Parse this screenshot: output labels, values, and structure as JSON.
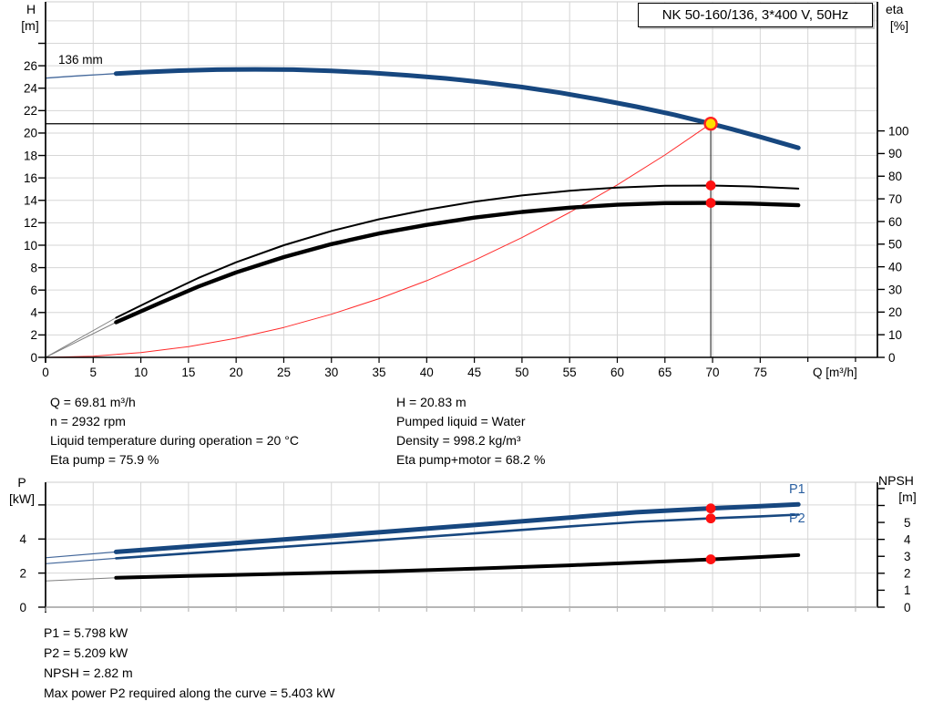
{
  "title_box": {
    "label": "NK 50-160/136, 3*400 V, 50Hz"
  },
  "colors": {
    "navy": "#17477F",
    "red": "#FF2222",
    "dot_red": "#FF1111",
    "yellow": "#FFDF00",
    "grid": "#D6D6D6",
    "axis": "#000000",
    "blue_label": "#2A5FA0",
    "leader_gray": "#808080",
    "leader_blue": "#44689B"
  },
  "top_chart": {
    "y_left_title_1": "H",
    "y_left_title_2": "[m]",
    "y_right_title_1": "eta",
    "y_right_title_2": "[%]",
    "x_title": "Q [m³/h]",
    "impeller_label": "136 mm"
  },
  "bottom_chart": {
    "y_left_title_1": "P",
    "y_left_title_2": "[kW]",
    "y_right_title_1": "NPSH",
    "y_right_title_2": "[m]",
    "p1_label": "P1",
    "p2_label": "P2"
  },
  "info_top": {
    "left": [
      "Q = 69.81 m³/h",
      "n = 2932 rpm",
      "Liquid temperature during operation = 20 °C",
      "Eta pump = 75.9 %"
    ],
    "right": [
      "H = 20.83 m",
      "Pumped liquid = Water",
      "Density = 998.2 kg/m³",
      "Eta pump+motor = 68.2 %"
    ]
  },
  "info_bottom": [
    "P1 = 5.798 kW",
    "P2 = 5.209 kW",
    "NPSH = 2.82 m",
    "Max power P2 required along the curve = 5.403 kW"
  ],
  "chart_data": [
    {
      "type": "line",
      "name": "hq-eta-chart",
      "title": "Head and efficiency vs flow, NK 50-160/136",
      "xlabel": "Q [m³/h]",
      "ylabel_left": "H [m]",
      "ylabel_right": "eta [%]",
      "xlim": [
        0,
        87.3
      ],
      "ylim_left": [
        0,
        31.7
      ],
      "ylim_right": [
        0,
        157
      ],
      "grid": {
        "x_step": 5,
        "x_max": 85,
        "y_step": 2,
        "y_max": 30
      },
      "ticks": {
        "x": [
          0,
          5,
          10,
          15,
          20,
          25,
          30,
          35,
          40,
          45,
          50,
          55,
          60,
          65,
          70,
          75
        ],
        "x_minor": [
          80,
          85
        ],
        "left": [
          0,
          2,
          4,
          6,
          8,
          10,
          12,
          14,
          16,
          18,
          20,
          22,
          24,
          26
        ],
        "left_minor": [
          28
        ],
        "right": [
          0,
          10,
          20,
          30,
          40,
          50,
          60,
          70,
          80,
          90,
          100
        ],
        "right_minor": []
      },
      "duty_point": {
        "q": 69.81,
        "h": 20.83
      },
      "guide_lines": [
        {
          "type": "h",
          "v": 20.83,
          "from_q": 0,
          "to_q": 69.81,
          "color": "#000000",
          "width": 1.3
        },
        {
          "type": "v",
          "q": 69.81,
          "from_v": 20.83,
          "to_v": 0,
          "color": "#3C3C3C",
          "width": 1.2
        }
      ],
      "series": [
        {
          "name": "system-curve",
          "axis": "left",
          "color": "#FF2A2A",
          "width": 1,
          "points": [
            [
              0,
              0
            ],
            [
              5,
              0.107
            ],
            [
              10,
              0.427
            ],
            [
              15,
              0.961
            ],
            [
              20,
              1.709
            ],
            [
              25,
              2.67
            ],
            [
              30,
              3.845
            ],
            [
              35,
              5.233
            ],
            [
              40,
              6.835
            ],
            [
              45,
              8.65
            ],
            [
              50,
              10.679
            ],
            [
              55,
              12.921
            ],
            [
              60,
              15.377
            ],
            [
              65,
              18.046
            ],
            [
              69.81,
              20.83
            ]
          ]
        },
        {
          "name": "eta-pump-plus-motor",
          "axis": "right",
          "color": "#000000",
          "width": 4.4,
          "thin_until": 7.4,
          "thin_color": "#808080",
          "thin_width": 1,
          "points": [
            [
              0,
              0
            ],
            [
              7.4,
              15.5
            ],
            [
              12,
              24
            ],
            [
              16,
              31.2
            ],
            [
              20,
              37.5
            ],
            [
              25,
              44.3
            ],
            [
              30,
              50
            ],
            [
              35,
              54.7
            ],
            [
              40,
              58.5
            ],
            [
              45,
              61.7
            ],
            [
              50,
              64.2
            ],
            [
              55,
              66.1
            ],
            [
              60,
              67.4
            ],
            [
              65,
              68.1
            ],
            [
              69.81,
              68.2
            ],
            [
              74,
              67.9
            ],
            [
              79,
              67.2
            ]
          ]
        },
        {
          "name": "eta-pump",
          "axis": "right",
          "color": "#000000",
          "width": 2,
          "thin_until": 7.4,
          "thin_color": "#808080",
          "thin_width": 1,
          "points": [
            [
              0,
              0
            ],
            [
              7.4,
              17.5
            ],
            [
              12,
              27
            ],
            [
              16,
              35
            ],
            [
              20,
              42
            ],
            [
              25,
              49.5
            ],
            [
              30,
              55.8
            ],
            [
              35,
              61
            ],
            [
              40,
              65.2
            ],
            [
              45,
              68.7
            ],
            [
              50,
              71.5
            ],
            [
              55,
              73.6
            ],
            [
              60,
              75
            ],
            [
              65,
              75.8
            ],
            [
              69.81,
              75.9
            ],
            [
              74,
              75.5
            ],
            [
              79,
              74.5
            ]
          ]
        },
        {
          "name": "head-curve-136mm",
          "axis": "left",
          "color": "#17477F",
          "width": 5,
          "thin_until": 7.4,
          "thin_color": "#44689B",
          "thin_width": 1.3,
          "points": [
            [
              0,
              24.9
            ],
            [
              2,
              25.02
            ],
            [
              4,
              25.13
            ],
            [
              6,
              25.23
            ],
            [
              7.4,
              25.3
            ],
            [
              10,
              25.42
            ],
            [
              14,
              25.56
            ],
            [
              18,
              25.65
            ],
            [
              22,
              25.68
            ],
            [
              26,
              25.65
            ],
            [
              30,
              25.55
            ],
            [
              34,
              25.38
            ],
            [
              38,
              25.15
            ],
            [
              42,
              24.87
            ],
            [
              46,
              24.52
            ],
            [
              50,
              24.1
            ],
            [
              54,
              23.6
            ],
            [
              58,
              23.0
            ],
            [
              62,
              22.35
            ],
            [
              66,
              21.63
            ],
            [
              69.81,
              20.83
            ],
            [
              72,
              20.35
            ],
            [
              75,
              19.65
            ],
            [
              77,
              19.17
            ],
            [
              79,
              18.68
            ]
          ]
        }
      ],
      "markers": [
        {
          "axis": "right",
          "q": 69.81,
          "v": 75.9,
          "style": "dot",
          "name": "eta-pump-dot"
        },
        {
          "axis": "right",
          "q": 69.81,
          "v": 68.2,
          "style": "dot",
          "name": "eta-pump-motor-dot"
        },
        {
          "axis": "left",
          "q": 69.81,
          "v": 20.83,
          "style": "duty",
          "name": "duty-point"
        }
      ]
    },
    {
      "type": "line",
      "name": "power-npsh-chart",
      "title": "Power and NPSH vs flow",
      "xlabel": "Q [m³/h]",
      "ylabel_left": "P [kW]",
      "ylabel_right": "NPSH [m]",
      "xlim": [
        0,
        87.3
      ],
      "ylim_left": [
        0,
        7.33
      ],
      "ylim_right": [
        0,
        7.37
      ],
      "grid": {
        "x_step": 5,
        "x_max": 85,
        "y_step": 2,
        "y_max": 6
      },
      "ticks": {
        "x": [],
        "x_minor": [
          0,
          5,
          10,
          15,
          20,
          25,
          30,
          35,
          40,
          45,
          50,
          55,
          60,
          65,
          70,
          75,
          80,
          85
        ],
        "left": [
          0,
          2,
          4
        ],
        "left_minor": [
          6
        ],
        "right": [
          0,
          1,
          2,
          3,
          4,
          5
        ],
        "right_minor": [
          6,
          7
        ]
      },
      "guide_lines": [],
      "series": [
        {
          "name": "p2-shaft-power",
          "axis": "left",
          "color": "#17477F",
          "width": 2.6,
          "thin_until": 7.4,
          "thin_color": "#44689B",
          "thin_width": 1.2,
          "points": [
            [
              0,
              2.55
            ],
            [
              7.4,
              2.87
            ],
            [
              15,
              3.16
            ],
            [
              25,
              3.54
            ],
            [
              35,
              3.93
            ],
            [
              45,
              4.33
            ],
            [
              55,
              4.74
            ],
            [
              62,
              5.0
            ],
            [
              69.81,
              5.209
            ],
            [
              75,
              5.33
            ],
            [
              79,
              5.43
            ]
          ]
        },
        {
          "name": "p1-input-power",
          "axis": "left",
          "color": "#17477F",
          "width": 5,
          "thin_until": 7.4,
          "thin_color": "#44689B",
          "thin_width": 1.2,
          "points": [
            [
              0,
              2.9
            ],
            [
              7.4,
              3.24
            ],
            [
              15,
              3.56
            ],
            [
              25,
              3.97
            ],
            [
              35,
              4.39
            ],
            [
              45,
              4.82
            ],
            [
              55,
              5.26
            ],
            [
              62,
              5.57
            ],
            [
              69.81,
              5.798
            ],
            [
              75,
              5.93
            ],
            [
              79,
              6.03
            ]
          ]
        },
        {
          "name": "npsh-curve",
          "axis": "right",
          "color": "#000000",
          "width": 4,
          "thin_until": 7.4,
          "thin_color": "#808080",
          "thin_width": 1,
          "points": [
            [
              0,
              1.55
            ],
            [
              7.4,
              1.73
            ],
            [
              15,
              1.84
            ],
            [
              25,
              1.97
            ],
            [
              35,
              2.1
            ],
            [
              45,
              2.27
            ],
            [
              55,
              2.47
            ],
            [
              62,
              2.63
            ],
            [
              69.81,
              2.82
            ],
            [
              75,
              2.96
            ],
            [
              79,
              3.07
            ]
          ]
        }
      ],
      "markers": [
        {
          "axis": "left",
          "q": 69.81,
          "v": 5.798,
          "style": "dot",
          "name": "p1-dot"
        },
        {
          "axis": "left",
          "q": 69.81,
          "v": 5.209,
          "style": "dot",
          "name": "p2-dot"
        },
        {
          "axis": "right",
          "q": 69.81,
          "v": 2.82,
          "style": "dot",
          "name": "npsh-dot"
        }
      ]
    }
  ]
}
